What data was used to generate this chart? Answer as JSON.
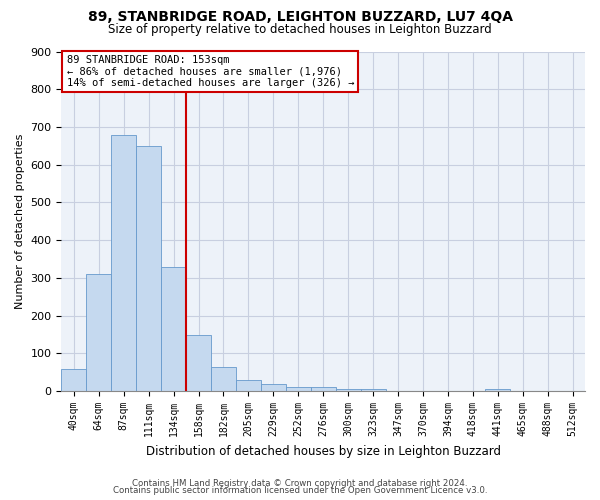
{
  "title": "89, STANBRIDGE ROAD, LEIGHTON BUZZARD, LU7 4QA",
  "subtitle": "Size of property relative to detached houses in Leighton Buzzard",
  "xlabel": "Distribution of detached houses by size in Leighton Buzzard",
  "ylabel": "Number of detached properties",
  "bar_color": "#c5d9ef",
  "bar_edge_color": "#6699cc",
  "categories": [
    "40sqm",
    "64sqm",
    "87sqm",
    "111sqm",
    "134sqm",
    "158sqm",
    "182sqm",
    "205sqm",
    "229sqm",
    "252sqm",
    "276sqm",
    "300sqm",
    "323sqm",
    "347sqm",
    "370sqm",
    "394sqm",
    "418sqm",
    "441sqm",
    "465sqm",
    "488sqm",
    "512sqm"
  ],
  "values": [
    60,
    310,
    680,
    650,
    330,
    150,
    65,
    30,
    18,
    10,
    10,
    5,
    5,
    0,
    0,
    0,
    0,
    5,
    0,
    0,
    0
  ],
  "ylim": [
    0,
    900
  ],
  "yticks": [
    0,
    100,
    200,
    300,
    400,
    500,
    600,
    700,
    800,
    900
  ],
  "vline_x": 4.5,
  "vline_color": "#cc0000",
  "annotation_box_text": "89 STANBRIDGE ROAD: 153sqm\n← 86% of detached houses are smaller (1,976)\n14% of semi-detached houses are larger (326) →",
  "footnote1": "Contains HM Land Registry data © Crown copyright and database right 2024.",
  "footnote2": "Contains public sector information licensed under the Open Government Licence v3.0.",
  "background_color": "#edf2f9",
  "grid_color": "#c8cfe0"
}
